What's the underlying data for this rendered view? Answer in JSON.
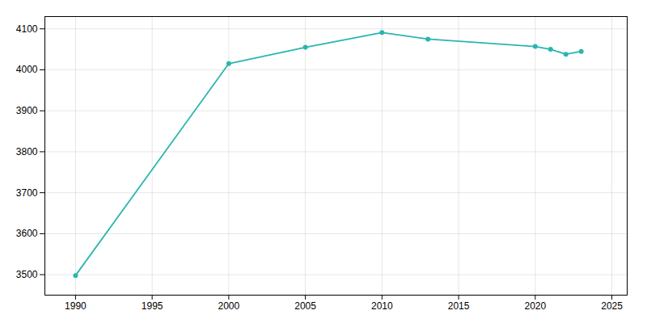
{
  "chart_data": {
    "type": "line",
    "x": [
      1990,
      2000,
      2005,
      2010,
      2013,
      2020,
      2021,
      2022,
      2023
    ],
    "values": [
      3498,
      4015,
      4055,
      4091,
      4075,
      4057,
      4050,
      4038,
      4045
    ],
    "color": "#2ab5b0",
    "marker": "circle",
    "xlim": [
      1988,
      2026
    ],
    "ylim": [
      3450,
      4130
    ],
    "xticks": [
      1990,
      1995,
      2000,
      2005,
      2010,
      2015,
      2020,
      2025
    ],
    "yticks": [
      3500,
      3600,
      3700,
      3800,
      3900,
      4000,
      4100
    ],
    "grid": true
  }
}
